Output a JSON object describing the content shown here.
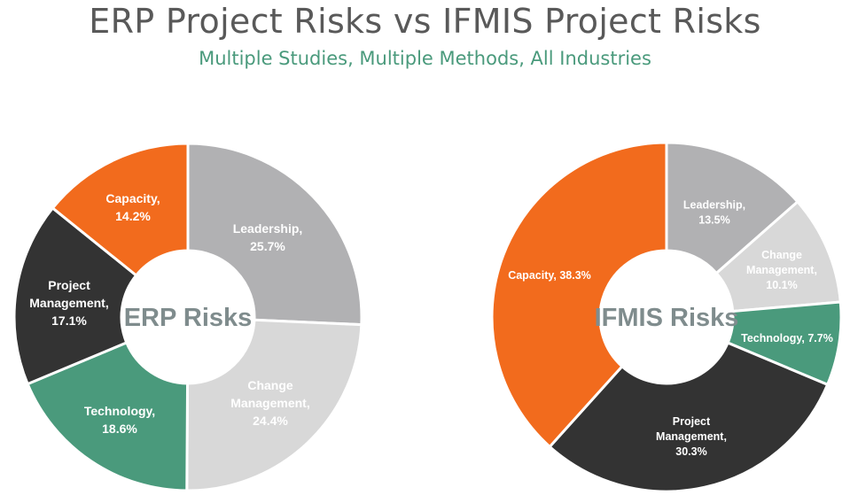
{
  "header": {
    "title": "ERP Project Risks vs IFMIS Project Risks",
    "subtitle": "Multiple Studies, Multiple Methods, All Industries"
  },
  "colors": {
    "leadership": "#b1b1b3",
    "change_management": "#d8d8d8",
    "technology": "#4a9a7c",
    "project_management": "#333333",
    "capacity": "#f26b1d",
    "label_light": "#ffffff",
    "label_dark": "#ffffff"
  },
  "chart_data": [
    {
      "type": "pie",
      "variant": "donut",
      "center_label": "ERP Risks",
      "start": "12 o'clock",
      "direction": "clockwise",
      "slices": [
        {
          "key": "leadership",
          "label_lines": [
            "Leadership,",
            "25.7%"
          ],
          "value": 25.7
        },
        {
          "key": "change_management",
          "label_lines": [
            "Change",
            "Management,",
            "24.4%"
          ],
          "value": 24.4
        },
        {
          "key": "technology",
          "label_lines": [
            "Technology,",
            "18.6%"
          ],
          "value": 18.6
        },
        {
          "key": "project_management",
          "label_lines": [
            "Project",
            "Management,",
            "17.1%"
          ],
          "value": 17.1
        },
        {
          "key": "capacity",
          "label_lines": [
            "Capacity,",
            "14.2%"
          ],
          "value": 14.2
        }
      ]
    },
    {
      "type": "pie",
      "variant": "donut",
      "center_label": "IFMIS Risks",
      "start": "12 o'clock",
      "direction": "clockwise",
      "slices": [
        {
          "key": "leadership",
          "label_lines": [
            "Leadership,",
            "13.5%"
          ],
          "value": 13.5
        },
        {
          "key": "change_management",
          "label_lines": [
            "Change",
            "Management,",
            "10.1%"
          ],
          "value": 10.1
        },
        {
          "key": "technology",
          "label_lines": [
            "Technology, 7.7%"
          ],
          "value": 7.7
        },
        {
          "key": "project_management",
          "label_lines": [
            "Project",
            "Management,",
            "30.3%"
          ],
          "value": 30.3
        },
        {
          "key": "capacity",
          "label_lines": [
            "Capacity, 38.3%"
          ],
          "value": 38.3
        }
      ]
    }
  ]
}
